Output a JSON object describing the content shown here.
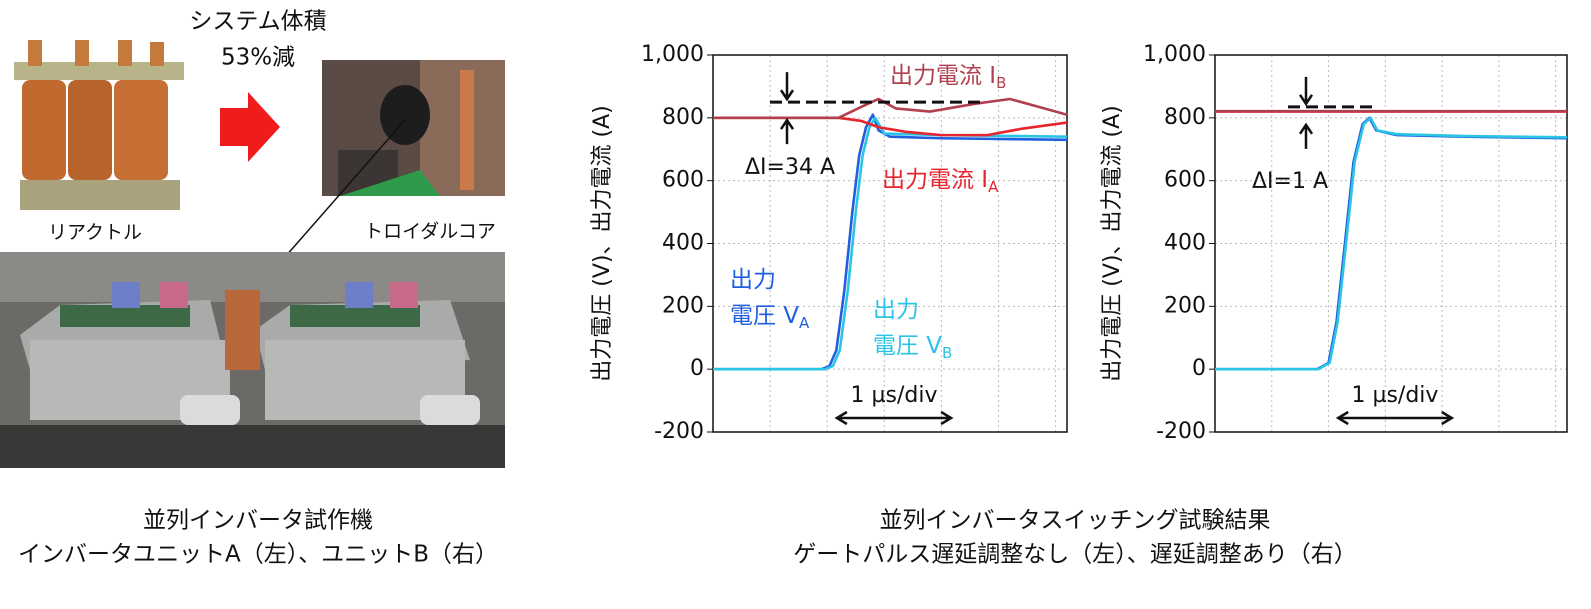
{
  "left_panel": {
    "volume_note": [
      "システム体積",
      "53%減"
    ],
    "reactor_label": "リアクトル",
    "core_label": "トロイダルコア",
    "caption": [
      "並列インバータ試作機",
      "インバータユニットA（左）、ユニットB（右）"
    ]
  },
  "right_caption": [
    "並列インバータスイッチング試験結果",
    "ゲートパルス遅延調整なし（左）、遅延調整あり（右）"
  ],
  "chart_data": [
    {
      "type": "line",
      "ylabel": "出力電圧 (V)、出力電流 (A)",
      "xlim": [
        0,
        3.1
      ],
      "xticks": [
        0.5,
        1,
        1.5,
        2,
        2.5,
        3
      ],
      "ylim": [
        -200,
        1000
      ],
      "yticks": [
        -200,
        0,
        200,
        400,
        600,
        800,
        {
          "value": 1000,
          "label": "1,000"
        }
      ],
      "grid": true,
      "time_note": "1 µs/div",
      "delta_note": "ΔI=34 A",
      "series": [
        {
          "name": {
            "lines": [
              "出力",
              "電圧 V"
            ],
            "sub": "A"
          },
          "color": "#1f5fe0",
          "x": [
            0,
            0.95,
            1.02,
            1.08,
            1.15,
            1.22,
            1.28,
            1.34,
            1.4,
            1.45,
            1.55,
            2,
            3.1
          ],
          "values": [
            0,
            0,
            10,
            60,
            250,
            500,
            680,
            770,
            810,
            760,
            740,
            735,
            730
          ]
        },
        {
          "name": {
            "lines": [
              "出力",
              "電圧 V"
            ],
            "sub": "B"
          },
          "color": "#2cc4e4",
          "x": [
            0,
            0.98,
            1.05,
            1.11,
            1.18,
            1.25,
            1.31,
            1.37,
            1.42,
            1.5,
            2,
            3.1
          ],
          "values": [
            0,
            0,
            10,
            60,
            250,
            500,
            680,
            770,
            800,
            750,
            745,
            740
          ]
        },
        {
          "name": {
            "lines": [
              "出力電流 I"
            ],
            "sub": "A"
          },
          "color": "#e8242c",
          "x": [
            0,
            1.1,
            1.3,
            1.45,
            1.7,
            2,
            2.4,
            2.7,
            3.1
          ],
          "values": [
            800,
            800,
            790,
            770,
            755,
            745,
            745,
            765,
            785
          ]
        },
        {
          "name": {
            "lines": [
              "出力電流 I"
            ],
            "sub": "B"
          },
          "color": "#b0404f",
          "x": [
            0,
            1.1,
            1.3,
            1.45,
            1.6,
            1.9,
            2.3,
            2.6,
            2.9,
            3.1
          ],
          "values": [
            800,
            800,
            835,
            860,
            830,
            820,
            845,
            860,
            830,
            810
          ]
        }
      ]
    },
    {
      "type": "line",
      "ylabel": "出力電圧 (V)、出力電流 (A)",
      "xlim": [
        0,
        3.1
      ],
      "xticks": [
        0.5,
        1,
        1.5,
        2,
        2.5,
        3
      ],
      "ylim": [
        -200,
        1000
      ],
      "yticks": [
        -200,
        0,
        200,
        400,
        600,
        800,
        {
          "value": 1000,
          "label": "1,000"
        }
      ],
      "grid": true,
      "time_note": "1 µs/div",
      "delta_note": "ΔI=1 A",
      "series": [
        {
          "color": "#1f5fe0",
          "x": [
            0,
            0.9,
            1,
            1.07,
            1.15,
            1.22,
            1.3,
            1.36,
            1.42,
            1.6,
            2.2,
            3.1
          ],
          "values": [
            0,
            0,
            20,
            150,
            420,
            660,
            780,
            800,
            760,
            745,
            740,
            735
          ]
        },
        {
          "color": "#2cc4e4",
          "x": [
            0,
            0.91,
            1.01,
            1.08,
            1.16,
            1.23,
            1.31,
            1.37,
            1.43,
            1.6,
            2.2,
            3.1
          ],
          "values": [
            0,
            0,
            20,
            150,
            420,
            660,
            780,
            800,
            760,
            748,
            742,
            738
          ]
        },
        {
          "color": "#e8242c",
          "x": [
            0,
            1,
            2,
            3.1
          ],
          "values": [
            820,
            820,
            820,
            820
          ]
        },
        {
          "color": "#b0404f",
          "x": [
            0,
            1,
            2,
            3.1
          ],
          "values": [
            821,
            821,
            821,
            821
          ]
        }
      ]
    }
  ]
}
